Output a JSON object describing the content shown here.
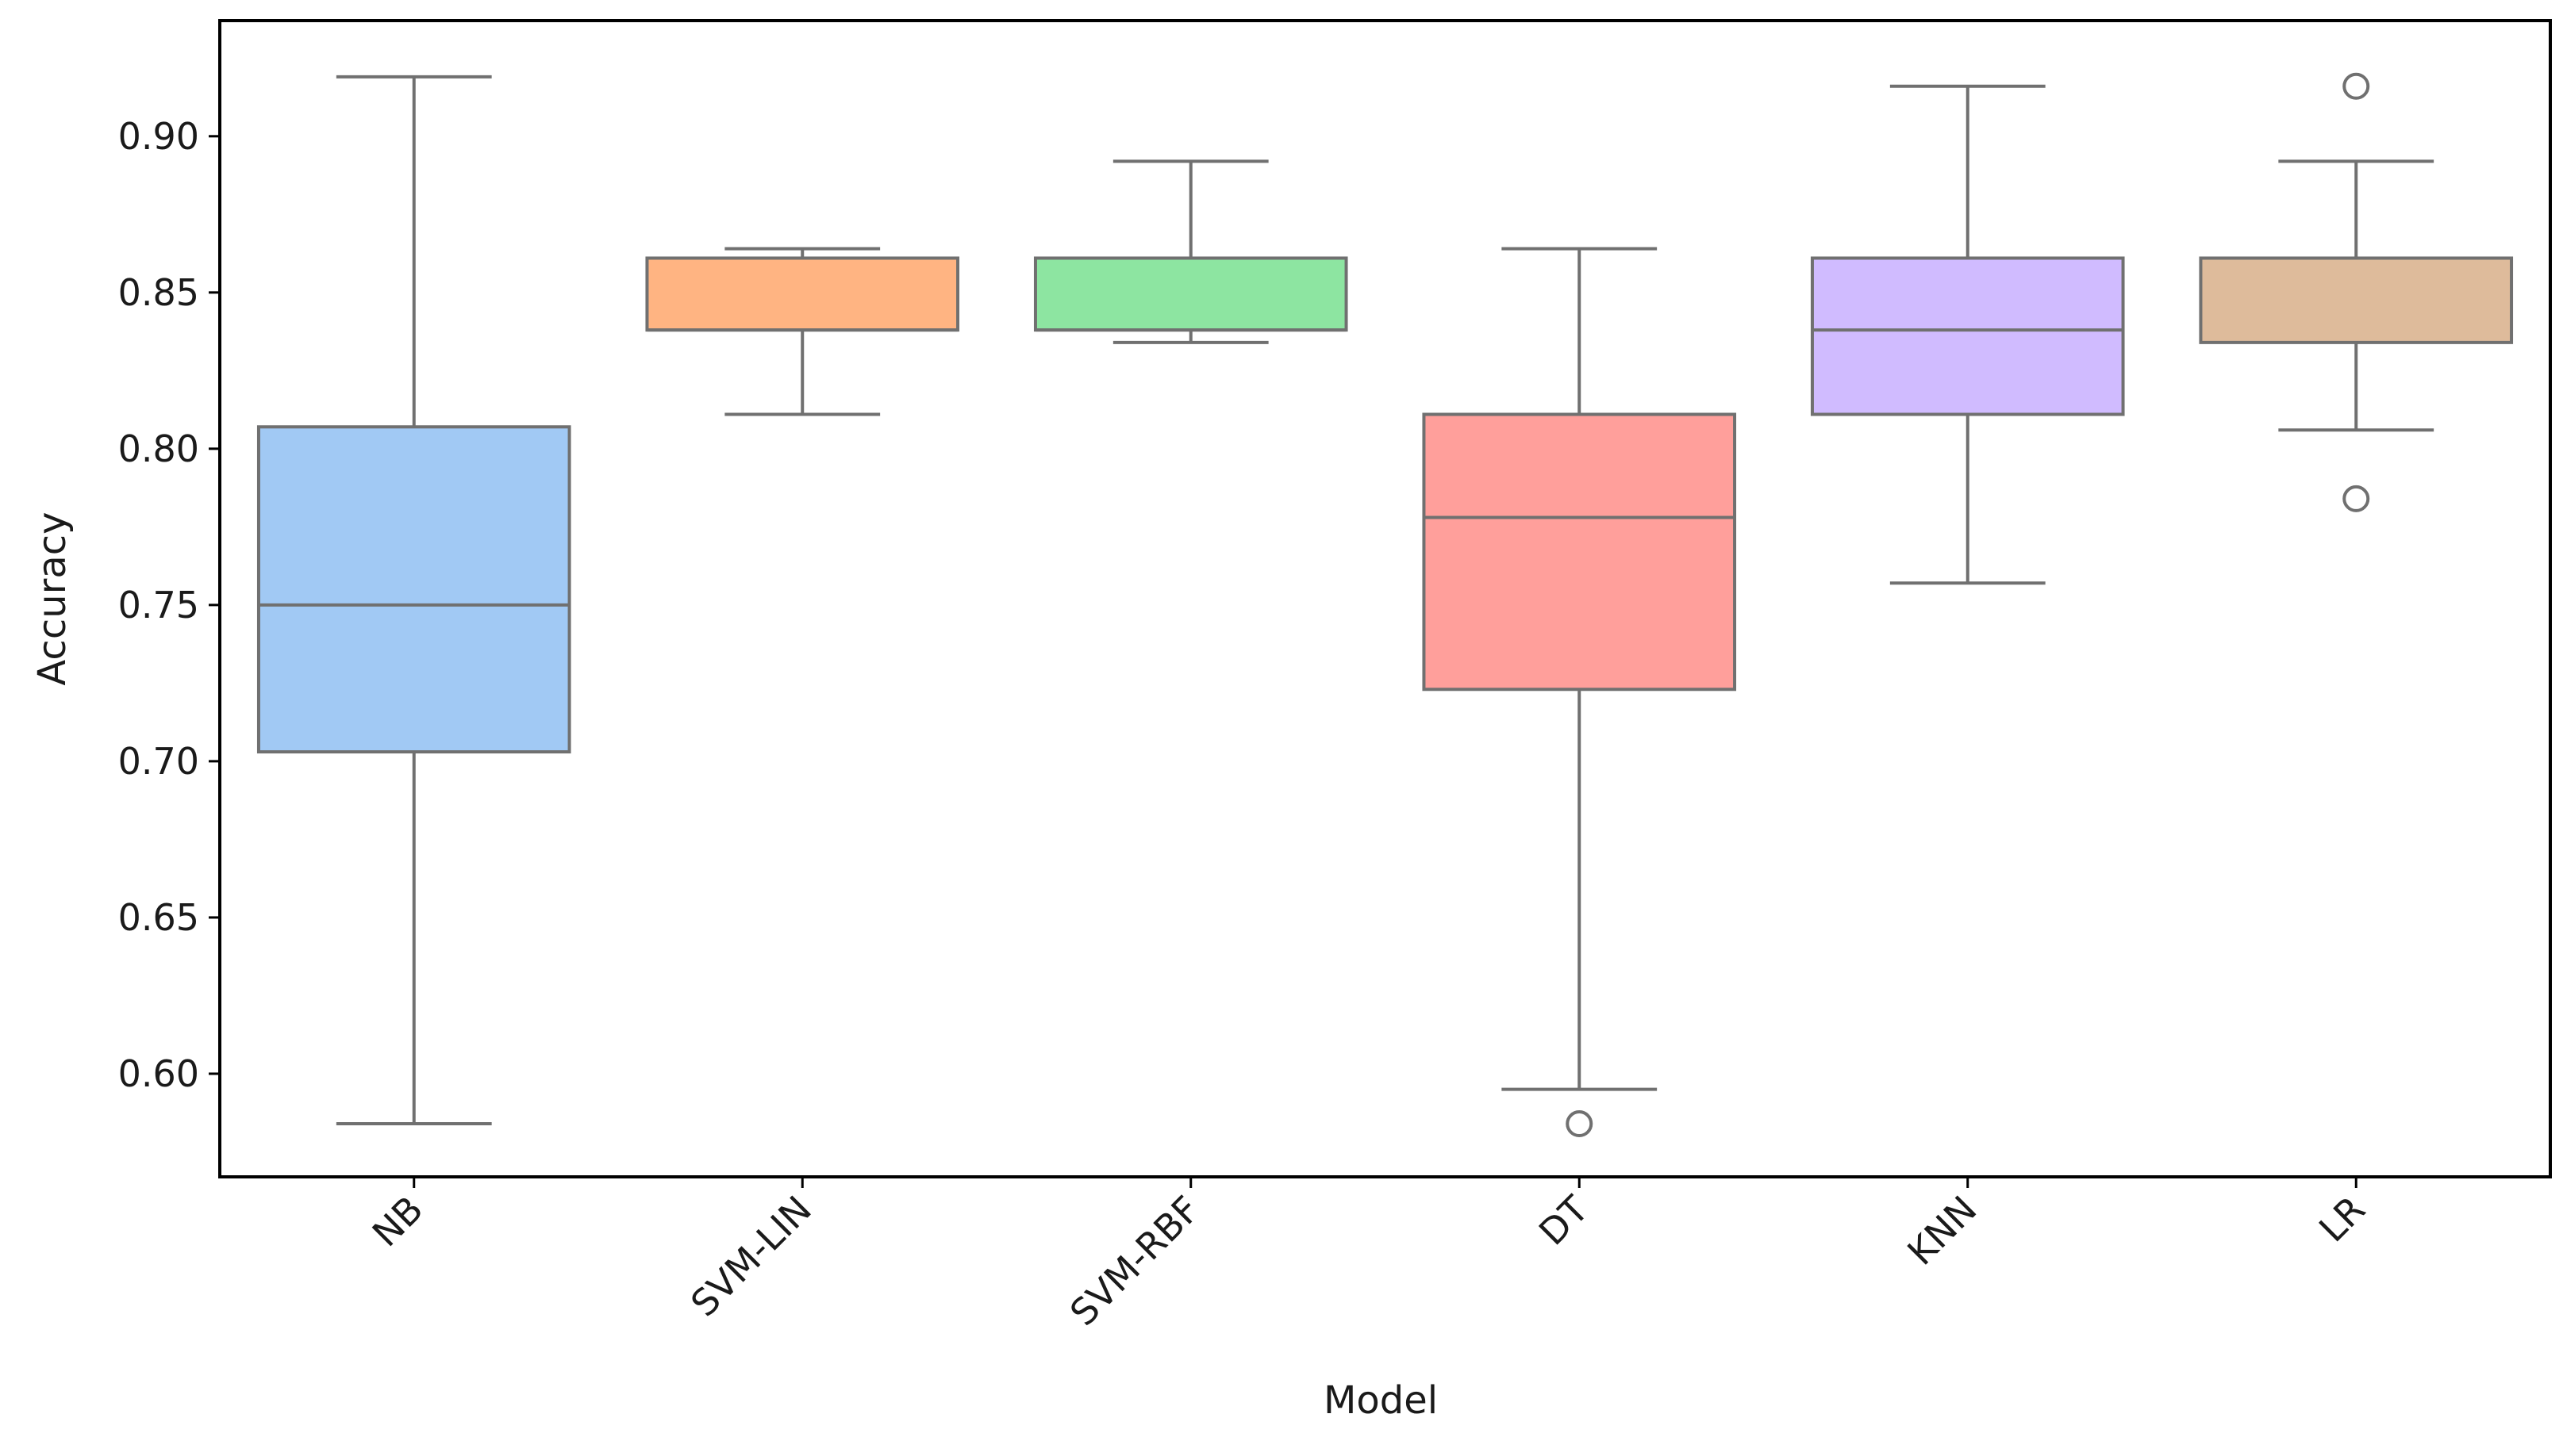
{
  "chart_data": {
    "type": "box",
    "title": "",
    "xlabel": "Model",
    "ylabel": "Accuracy",
    "ylim": [
      0.567,
      0.937
    ],
    "yticks": [
      0.6,
      0.65,
      0.7,
      0.75,
      0.8,
      0.85,
      0.9
    ],
    "ytick_labels": [
      "0.60",
      "0.65",
      "0.70",
      "0.75",
      "0.80",
      "0.85",
      "0.90"
    ],
    "categories": [
      "NB",
      "SVM-LIN",
      "SVM-RBF",
      "DT",
      "KNN",
      "LR"
    ],
    "series": [
      {
        "category": "NB",
        "color": "#a1c9f4",
        "whisker_low": 0.584,
        "q1": 0.703,
        "median": 0.75,
        "q3": 0.807,
        "whisker_high": 0.919,
        "outliers": []
      },
      {
        "category": "SVM-LIN",
        "color": "#ffb482",
        "whisker_low": 0.811,
        "q1": 0.838,
        "median": 0.838,
        "q3": 0.861,
        "whisker_high": 0.864,
        "outliers": []
      },
      {
        "category": "SVM-RBF",
        "color": "#8de5a1",
        "whisker_low": 0.834,
        "q1": 0.838,
        "median": 0.838,
        "q3": 0.861,
        "whisker_high": 0.892,
        "outliers": []
      },
      {
        "category": "DT",
        "color": "#ff9f9b",
        "whisker_low": 0.595,
        "q1": 0.723,
        "median": 0.778,
        "q3": 0.811,
        "whisker_high": 0.864,
        "outliers": [
          0.584
        ]
      },
      {
        "category": "KNN",
        "color": "#d0bbff",
        "whisker_low": 0.757,
        "q1": 0.811,
        "median": 0.838,
        "q3": 0.861,
        "whisker_high": 0.916,
        "outliers": []
      },
      {
        "category": "LR",
        "color": "#debb9b",
        "whisker_low": 0.806,
        "q1": 0.834,
        "median": 0.861,
        "q3": 0.861,
        "whisker_high": 0.892,
        "outliers": [
          0.784,
          0.916
        ]
      }
    ],
    "grid": false,
    "legend": "none",
    "line_color": "#707070",
    "x_tick_rotation": "45"
  }
}
